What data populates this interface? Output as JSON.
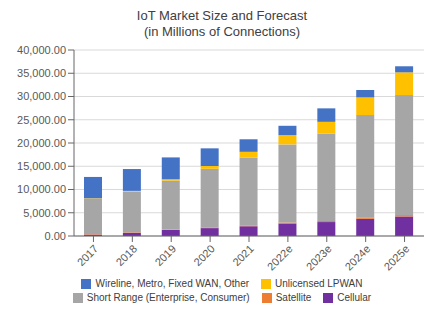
{
  "chart_data": {
    "type": "bar",
    "title": "IoT Market Size and Forecast",
    "subtitle": "(in Millions of Connections)",
    "categories": [
      "2017",
      "2018",
      "2019",
      "2020",
      "2021",
      "2022e",
      "2023e",
      "2024e",
      "2025e"
    ],
    "stacked": true,
    "series": [
      {
        "name": "Cellular",
        "color": "#7030a0",
        "values": [
          300,
          700,
          1300,
          1700,
          2100,
          2700,
          3000,
          3700,
          4200
        ]
      },
      {
        "name": "Satellite",
        "color": "#ed7d31",
        "values": [
          100,
          100,
          100,
          150,
          200,
          200,
          250,
          300,
          300
        ]
      },
      {
        "name": "Short Range (Enterprise, Consumer)",
        "color": "#a6a6a6",
        "values": [
          7600,
          8700,
          10500,
          12600,
          14600,
          16800,
          18800,
          22000,
          25800
        ]
      },
      {
        "name": "Unlicensed LPWAN",
        "color": "#ffc000",
        "values": [
          100,
          200,
          300,
          600,
          1200,
          2000,
          2500,
          3800,
          4900
        ]
      },
      {
        "name": "Wireline, Metro, Fixed WAN, Other",
        "color": "#4472c4",
        "values": [
          4600,
          4700,
          4700,
          3800,
          2700,
          2000,
          2900,
          1600,
          1300
        ]
      }
    ],
    "ylim": [
      0,
      40000
    ],
    "yticks": [
      {
        "value": 0,
        "label": "0.00"
      },
      {
        "value": 5000,
        "label": "5,000.00"
      },
      {
        "value": 10000,
        "label": "10,000.00"
      },
      {
        "value": 15000,
        "label": "15,000.00"
      },
      {
        "value": 20000,
        "label": "20,000.00"
      },
      {
        "value": 25000,
        "label": "25,000.00"
      },
      {
        "value": 30000,
        "label": "30,000.00"
      },
      {
        "value": 35000,
        "label": "35,000.00"
      },
      {
        "value": 40000,
        "label": "40,000.00"
      }
    ],
    "grid": true,
    "legend": "bottom"
  }
}
